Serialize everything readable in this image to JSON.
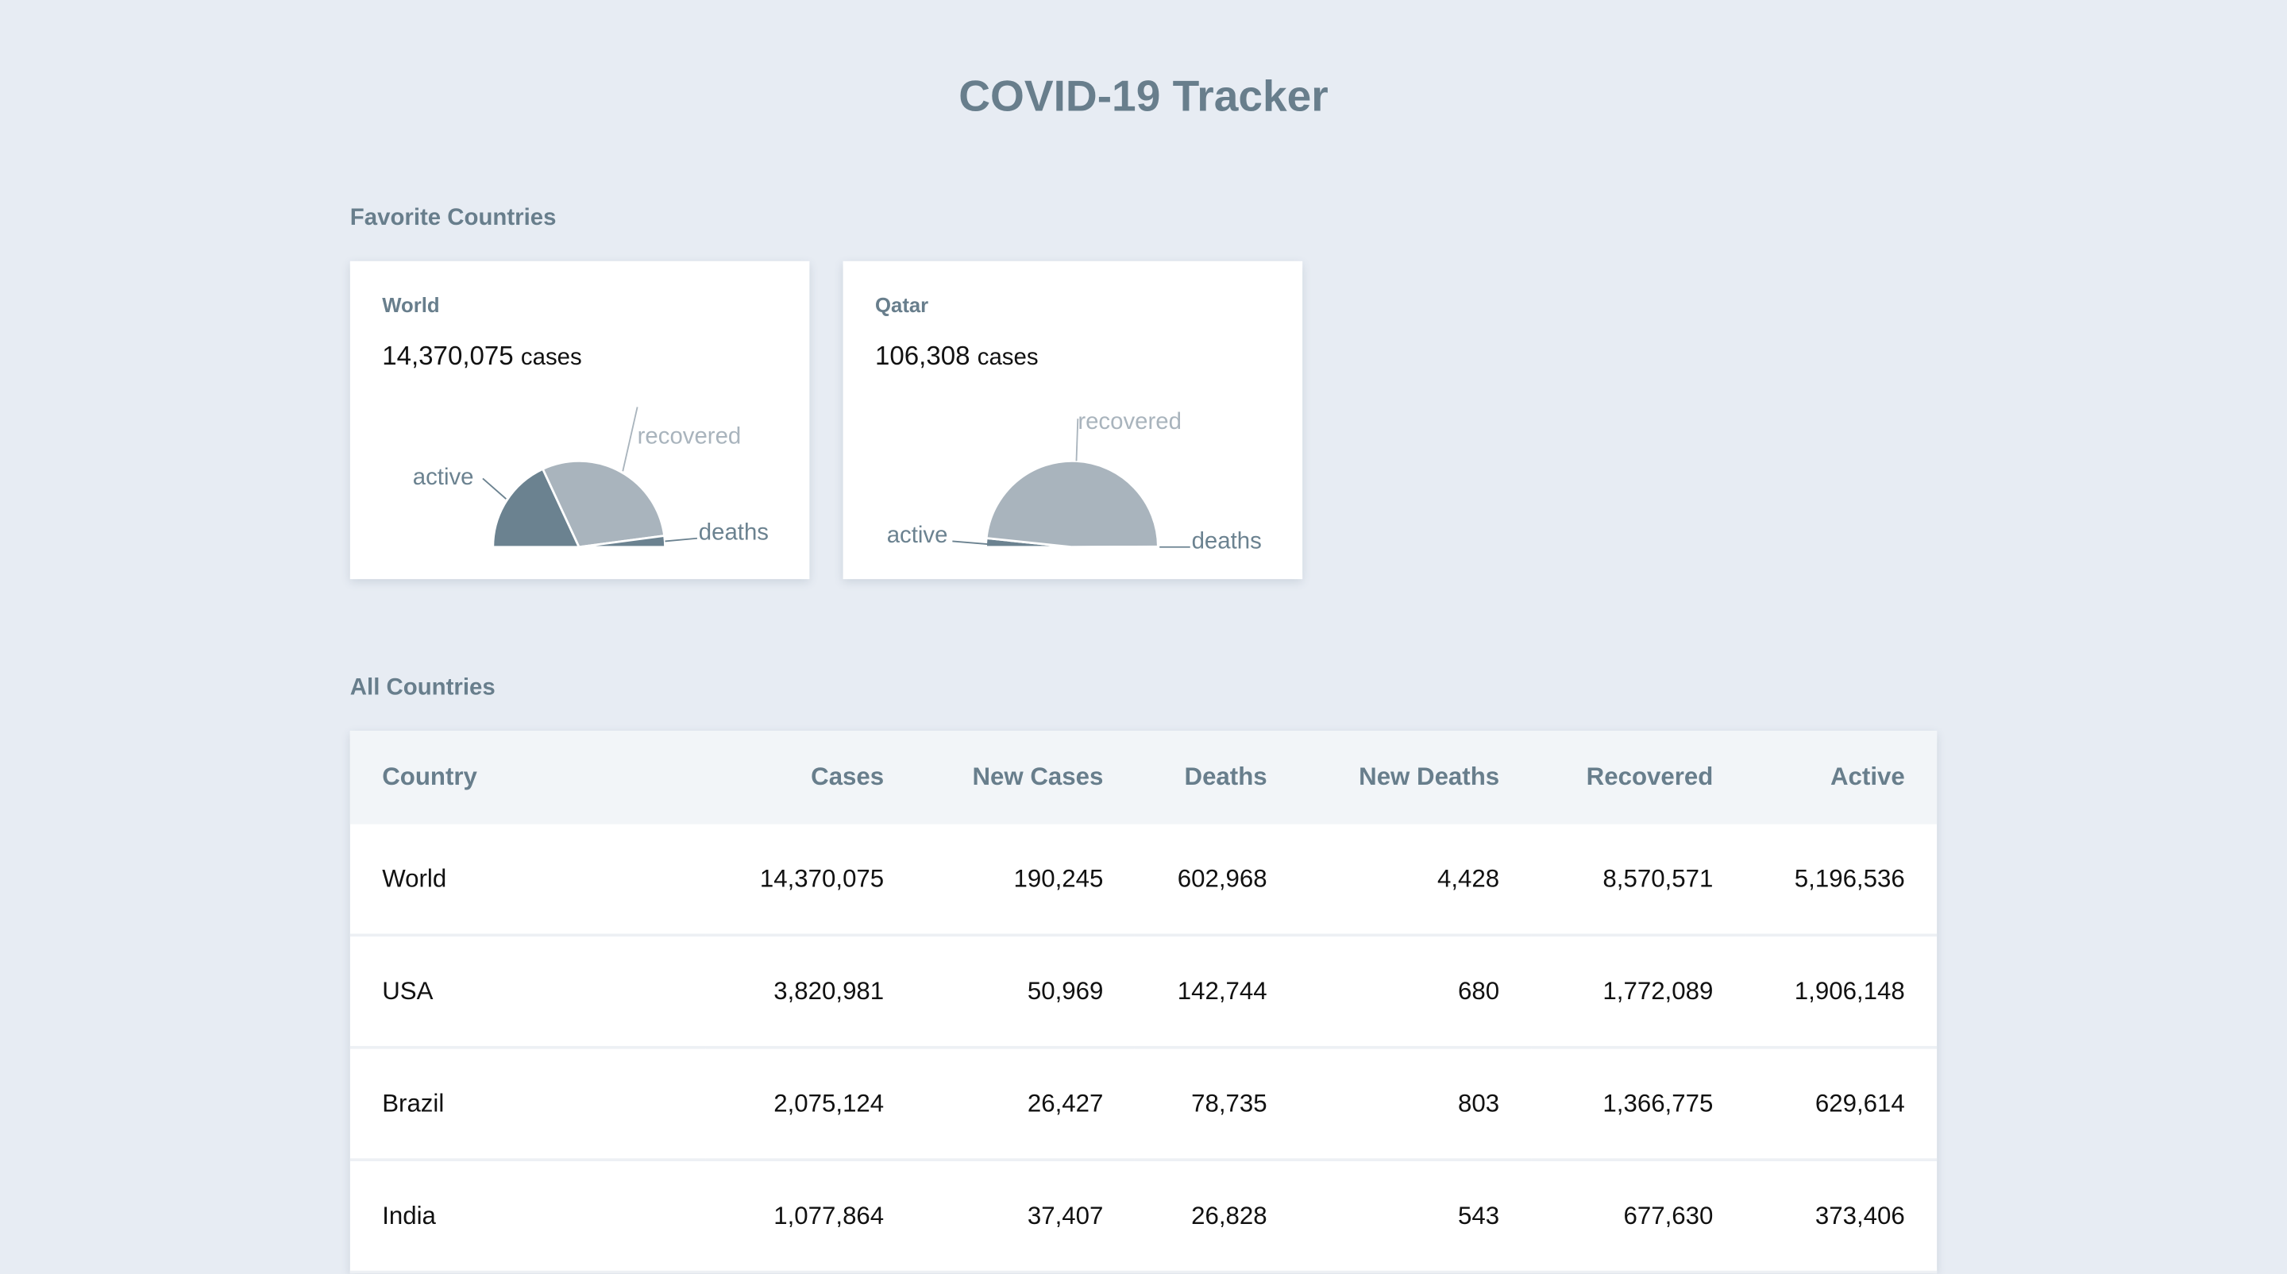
{
  "header": {
    "title": "COVID-19 Tracker"
  },
  "favorites": {
    "heading": "Favorite Countries",
    "cases_suffix": "cases",
    "colors": {
      "active": "#6b8290",
      "recovered": "#a9b4bd",
      "deaths": "#6b8290"
    },
    "cards": [
      {
        "name": "World",
        "cases": "14,370,075",
        "labels": {
          "active": "active",
          "recovered": "recovered",
          "deaths": "deaths"
        },
        "shares": {
          "active": 5196536,
          "recovered": 8570571,
          "deaths": 602968
        }
      },
      {
        "name": "Qatar",
        "cases": "106,308",
        "labels": {
          "active": "active",
          "recovered": "recovered",
          "deaths": "deaths"
        },
        "shares": {
          "active": 3.3,
          "recovered": 96.55,
          "deaths": 0.15
        }
      }
    ]
  },
  "all": {
    "heading": "All Countries",
    "columns": [
      "Country",
      "Cases",
      "New Cases",
      "Deaths",
      "New Deaths",
      "Recovered",
      "Active"
    ],
    "rows": [
      [
        "World",
        "14,370,075",
        "190,245",
        "602,968",
        "4,428",
        "8,570,571",
        "5,196,536"
      ],
      [
        "USA",
        "3,820,981",
        "50,969",
        "142,744",
        "680",
        "1,772,089",
        "1,906,148"
      ],
      [
        "Brazil",
        "2,075,124",
        "26,427",
        "78,735",
        "803",
        "1,366,775",
        "629,614"
      ],
      [
        "India",
        "1,077,864",
        "37,407",
        "26,828",
        "543",
        "677,630",
        "373,406"
      ]
    ]
  }
}
